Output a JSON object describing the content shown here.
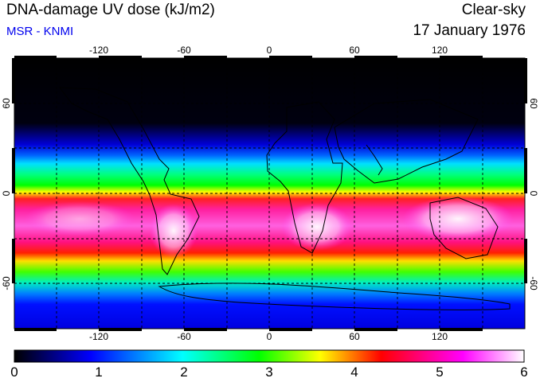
{
  "header": {
    "title": "DNA-damage UV dose (kJ/m2)",
    "subtitle": "MSR - KNMI",
    "condition": "Clear-sky",
    "date": "17 January 1976"
  },
  "map": {
    "lon_ticks": [
      "-120",
      "-60",
      "0",
      "60",
      "120"
    ],
    "lat_ticks_left": [
      "60",
      "0",
      "-60"
    ],
    "lat_ticks_right": [
      "60",
      "0",
      "-60"
    ],
    "lon_range": [
      -180,
      180
    ],
    "lat_range": [
      -90,
      90
    ],
    "grid": true
  },
  "colorbar": {
    "ticks": [
      "0",
      "1",
      "2",
      "3",
      "4",
      "5",
      "6"
    ],
    "range": [
      0,
      6
    ],
    "colors": [
      "#000000",
      "#0000ff",
      "#00ffff",
      "#00ff00",
      "#ffff00",
      "#ff0000",
      "#ff00ff",
      "#ffffff"
    ]
  }
}
